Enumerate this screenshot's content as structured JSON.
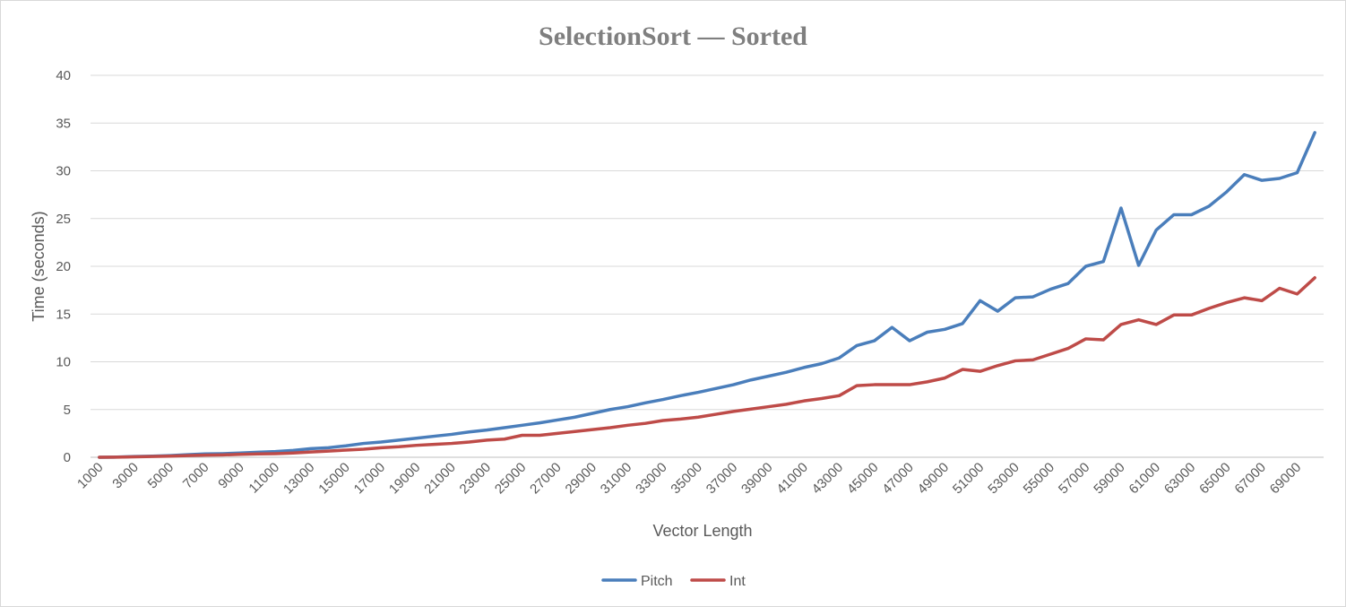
{
  "chart_data": {
    "type": "line",
    "title": "SelectionSort — Sorted",
    "xlabel": "Vector Length",
    "ylabel": "Time (seconds)",
    "ylim": [
      0,
      40
    ],
    "yticks": [
      0,
      5,
      10,
      15,
      20,
      25,
      30,
      35,
      40
    ],
    "xtick_labels": [
      "1000",
      "3000",
      "5000",
      "7000",
      "9000",
      "11000",
      "13000",
      "15000",
      "17000",
      "19000",
      "21000",
      "23000",
      "25000",
      "27000",
      "29000",
      "31000",
      "33000",
      "35000",
      "37000",
      "39000",
      "41000",
      "43000",
      "45000",
      "47000",
      "49000",
      "51000",
      "53000",
      "55000",
      "57000",
      "59000",
      "61000",
      "63000",
      "65000",
      "67000",
      "69000"
    ],
    "x": [
      1000,
      2000,
      3000,
      4000,
      5000,
      6000,
      7000,
      8000,
      9000,
      10000,
      11000,
      12000,
      13000,
      14000,
      15000,
      16000,
      17000,
      18000,
      19000,
      20000,
      21000,
      22000,
      23000,
      24000,
      25000,
      26000,
      27000,
      28000,
      29000,
      30000,
      31000,
      32000,
      33000,
      34000,
      35000,
      36000,
      37000,
      38000,
      39000,
      40000,
      41000,
      42000,
      43000,
      44000,
      45000,
      46000,
      47000,
      48000,
      49000,
      50000,
      51000,
      52000,
      53000,
      54000,
      55000,
      56000,
      57000,
      58000,
      59000,
      60000,
      61000,
      62000,
      63000,
      64000,
      65000,
      66000,
      67000,
      68000,
      69000,
      70000
    ],
    "grid": true,
    "legend_position": "bottom",
    "series": [
      {
        "name": "Pitch",
        "color": "#4a7ebb",
        "values": [
          0.0,
          0.02,
          0.08,
          0.12,
          0.18,
          0.27,
          0.35,
          0.38,
          0.45,
          0.53,
          0.6,
          0.72,
          0.9,
          1.0,
          1.2,
          1.45,
          1.6,
          1.8,
          2.0,
          2.2,
          2.4,
          2.65,
          2.85,
          3.1,
          3.35,
          3.6,
          3.9,
          4.2,
          4.6,
          5.0,
          5.3,
          5.7,
          6.05,
          6.45,
          6.8,
          7.2,
          7.6,
          8.1,
          8.5,
          8.9,
          9.4,
          9.8,
          10.4,
          11.7,
          12.2,
          13.6,
          12.2,
          13.1,
          13.4,
          14.0,
          16.4,
          15.3,
          16.7,
          16.8,
          17.6,
          18.2,
          20.0,
          20.5,
          26.1,
          20.1,
          23.8,
          25.4,
          25.4,
          26.3,
          27.8,
          29.6,
          29.0,
          29.2,
          29.8,
          34.0
        ]
      },
      {
        "name": "Int",
        "color": "#be4b48",
        "values": [
          0.0,
          0.01,
          0.05,
          0.08,
          0.12,
          0.18,
          0.22,
          0.25,
          0.3,
          0.35,
          0.38,
          0.45,
          0.55,
          0.65,
          0.75,
          0.85,
          1.0,
          1.1,
          1.25,
          1.35,
          1.45,
          1.6,
          1.8,
          1.9,
          2.3,
          2.3,
          2.5,
          2.7,
          2.9,
          3.1,
          3.35,
          3.55,
          3.85,
          4.0,
          4.2,
          4.5,
          4.8,
          5.05,
          5.3,
          5.55,
          5.9,
          6.15,
          6.45,
          7.5,
          7.6,
          7.6,
          7.6,
          7.9,
          8.3,
          9.2,
          9.0,
          9.6,
          10.1,
          10.2,
          10.8,
          11.4,
          12.4,
          12.3,
          13.9,
          14.4,
          13.9,
          14.9,
          14.9,
          15.6,
          16.2,
          16.7,
          16.4,
          17.7,
          17.1,
          18.8
        ]
      }
    ]
  }
}
